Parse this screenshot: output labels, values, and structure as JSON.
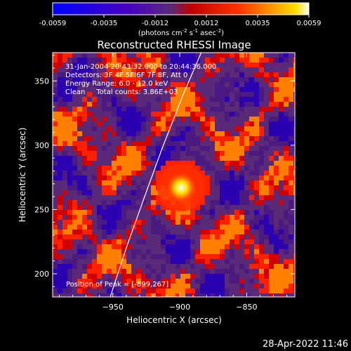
{
  "colorbar": {
    "ticks": [
      "-0.0059",
      "-0.0035",
      "-0.0012",
      "0.0012",
      "0.0035",
      "0.0059"
    ],
    "units_main": "(photons cm",
    "units_exp1": "-2",
    "units_mid1": " s",
    "units_exp2": "-1",
    "units_mid2": " asec",
    "units_exp3": "-2",
    "units_end": ")",
    "range": [
      -0.0059,
      0.0059
    ]
  },
  "chart_data": {
    "type": "heatmap",
    "title": "Reconstructed RHESSI Image",
    "xlabel": "Heliocentric X (arcsec)",
    "ylabel": "Heliocentric Y (arcsec)",
    "xlim": [
      -995,
      -814
    ],
    "ylim": [
      182,
      372
    ],
    "x_ticks": [
      -950,
      -900,
      -850
    ],
    "y_ticks": [
      200,
      250,
      300,
      350
    ],
    "peak": {
      "x": -899,
      "y": 267,
      "label": "Position of Peak = [-899,267]"
    },
    "info_lines": [
      "31-Jan-2004 20:43:32.000 to 20:44:36.000",
      "Detectors: 3F 4F 5F 6F 7F 8F, Att 0",
      "Energy Range: 6.0 - 12.0 keV",
      "Clean     Total counts: 3.86E+03"
    ],
    "limb_curve": [
      [
        -952,
        182
      ],
      [
        -940,
        220
      ],
      [
        -927,
        258
      ],
      [
        -913,
        298
      ],
      [
        -898,
        338
      ],
      [
        -884,
        372
      ]
    ],
    "colormap": [
      "#0000ff",
      "#2a00b0",
      "#4a1a80",
      "#5a2a78",
      "#d00000",
      "#ff2000",
      "#ff8000",
      "#ffd000",
      "#ffffff"
    ]
  },
  "timestamp": "28-Apr-2022 11:46"
}
